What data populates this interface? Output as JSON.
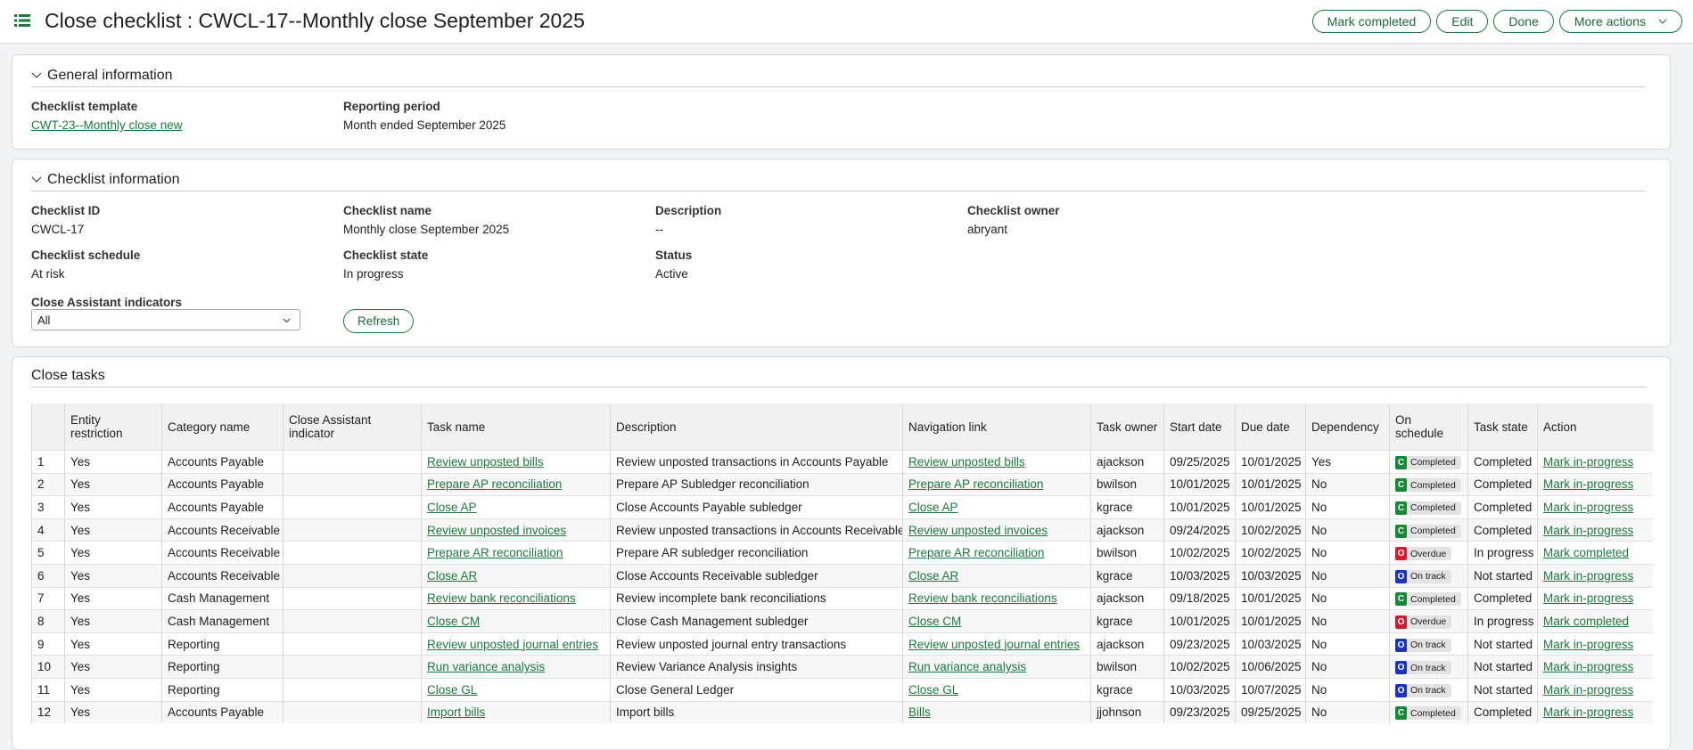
{
  "header": {
    "title": "Close checklist : CWCL-17--Monthly close September 2025",
    "buttons": [
      "Mark completed",
      "Edit",
      "Done",
      "More actions"
    ]
  },
  "general": {
    "title": "General information",
    "fields": [
      {
        "label": "Checklist template",
        "value": "CWT-23--Monthly close new"
      },
      {
        "label": "Reporting period",
        "value": "Month ended September 2025"
      }
    ]
  },
  "checklist_info": {
    "title": "Checklist information",
    "fields": [
      {
        "label": "Checklist ID",
        "value": "CWCL-17"
      },
      {
        "label": "Checklist name",
        "value": "Monthly close September 2025"
      },
      {
        "label": "Description",
        "value": "--"
      },
      {
        "label": "Checklist owner",
        "value": "abryant"
      },
      {
        "label": "Checklist schedule",
        "value": "At risk"
      },
      {
        "label": "Checklist state",
        "value": "In progress"
      },
      {
        "label": "Status",
        "value": "Active"
      }
    ],
    "indicators_label": "Close Assistant indicators",
    "indicators_value": "All",
    "refresh": "Refresh"
  },
  "close_tasks": {
    "title": "Close tasks",
    "columns": [
      "Entity restriction",
      "Category name",
      "Close Assistant indicator",
      "Task name",
      "Description",
      "Navigation link",
      "Task owner",
      "Start date",
      "Due date",
      "Dependency",
      "On schedule",
      "Task state",
      "Action"
    ],
    "rows": [
      {
        "num": "1",
        "entity": "Yes",
        "category": "Accounts Payable",
        "task": "Review unposted bills",
        "description": "Review unposted transactions in Accounts Payable",
        "nav": "Review unposted bills",
        "owner": "ajackson",
        "start": "09/25/2025",
        "due": "10/01/2025",
        "dependency": "Yes",
        "schedule": {
          "code": "C",
          "label": "Completed",
          "color": "#138a36"
        },
        "state": "Completed",
        "action": "Mark in-progress"
      },
      {
        "num": "2",
        "entity": "Yes",
        "category": "Accounts Payable",
        "task": "Prepare AP reconciliation",
        "description": "Prepare AP Subledger reconciliation",
        "nav": "Prepare AP reconciliation",
        "owner": "bwilson",
        "start": "10/01/2025",
        "due": "10/01/2025",
        "dependency": "No",
        "schedule": {
          "code": "C",
          "label": "Completed",
          "color": "#138a36"
        },
        "state": "Completed",
        "action": "Mark in-progress"
      },
      {
        "num": "3",
        "entity": "Yes",
        "category": "Accounts Payable",
        "task": "Close AP",
        "description": "Close Accounts Payable subledger",
        "nav": "Close AP",
        "owner": "kgrace",
        "start": "10/01/2025",
        "due": "10/01/2025",
        "dependency": "No",
        "schedule": {
          "code": "C",
          "label": "Completed",
          "color": "#138a36"
        },
        "state": "Completed",
        "action": "Mark in-progress"
      },
      {
        "num": "4",
        "entity": "Yes",
        "category": "Accounts Receivable",
        "task": "Review unposted invoices",
        "description": "Review unposted transactions in Accounts Receivable",
        "nav": "Review unposted invoices",
        "owner": "ajackson",
        "start": "09/24/2025",
        "due": "10/02/2025",
        "dependency": "No",
        "schedule": {
          "code": "C",
          "label": "Completed",
          "color": "#138a36"
        },
        "state": "Completed",
        "action": "Mark in-progress"
      },
      {
        "num": "5",
        "entity": "Yes",
        "category": "Accounts Receivable",
        "task": "Prepare AR reconciliation",
        "description": "Prepare AR subledger reconciliation",
        "nav": "Prepare AR reconciliation",
        "owner": "bwilson",
        "start": "10/02/2025",
        "due": "10/02/2025",
        "dependency": "No",
        "schedule": {
          "code": "O",
          "label": "Overdue",
          "color": "#d9182d"
        },
        "state": "In progress",
        "action": "Mark completed"
      },
      {
        "num": "6",
        "entity": "Yes",
        "category": "Accounts Receivable",
        "task": "Close AR",
        "description": "Close Accounts Receivable subledger",
        "nav": "Close AR",
        "owner": "kgrace",
        "start": "10/03/2025",
        "due": "10/03/2025",
        "dependency": "No",
        "schedule": {
          "code": "O",
          "label": "On track",
          "color": "#1933c8"
        },
        "state": "Not started",
        "action": "Mark in-progress"
      },
      {
        "num": "7",
        "entity": "Yes",
        "category": "Cash Management",
        "task": "Review bank reconciliations",
        "description": "Review incomplete bank reconciliations",
        "nav": "Review bank reconciliations",
        "owner": "ajackson",
        "start": "09/18/2025",
        "due": "10/01/2025",
        "dependency": "No",
        "schedule": {
          "code": "C",
          "label": "Completed",
          "color": "#138a36"
        },
        "state": "Completed",
        "action": "Mark in-progress"
      },
      {
        "num": "8",
        "entity": "Yes",
        "category": "Cash Management",
        "task": "Close CM",
        "description": "Close Cash Management subledger",
        "nav": "Close CM",
        "owner": "kgrace",
        "start": "10/01/2025",
        "due": "10/01/2025",
        "dependency": "No",
        "schedule": {
          "code": "O",
          "label": "Overdue",
          "color": "#d9182d"
        },
        "state": "In progress",
        "action": "Mark completed"
      },
      {
        "num": "9",
        "entity": "Yes",
        "category": "Reporting",
        "task": "Review unposted journal entries",
        "description": "Review unposted journal entry transactions",
        "nav": "Review unposted journal entries",
        "owner": "ajackson",
        "start": "09/23/2025",
        "due": "10/03/2025",
        "dependency": "No",
        "schedule": {
          "code": "O",
          "label": "On track",
          "color": "#1933c8"
        },
        "state": "Not started",
        "action": "Mark in-progress"
      },
      {
        "num": "10",
        "entity": "Yes",
        "category": "Reporting",
        "task": "Run variance analysis",
        "description": "Review Variance Analysis insights",
        "nav": "Run variance analysis",
        "owner": "bwilson",
        "start": "10/02/2025",
        "due": "10/06/2025",
        "dependency": "No",
        "schedule": {
          "code": "O",
          "label": "On track",
          "color": "#1933c8"
        },
        "state": "Not started",
        "action": "Mark in-progress"
      },
      {
        "num": "11",
        "entity": "Yes",
        "category": "Reporting",
        "task": "Close GL",
        "description": "Close General Ledger",
        "nav": "Close GL",
        "owner": "kgrace",
        "start": "10/03/2025",
        "due": "10/07/2025",
        "dependency": "No",
        "schedule": {
          "code": "O",
          "label": "On track",
          "color": "#1933c8"
        },
        "state": "Not started",
        "action": "Mark in-progress"
      },
      {
        "num": "12",
        "entity": "Yes",
        "category": "Accounts Payable",
        "task": "Import bills",
        "description": "Import bills",
        "nav": "Bills",
        "owner": "jjohnson",
        "start": "09/23/2025",
        "due": "09/25/2025",
        "dependency": "No",
        "schedule": {
          "code": "C",
          "label": "Completed",
          "color": "#138a36"
        },
        "state": "Completed",
        "action": "Mark in-progress"
      }
    ]
  }
}
